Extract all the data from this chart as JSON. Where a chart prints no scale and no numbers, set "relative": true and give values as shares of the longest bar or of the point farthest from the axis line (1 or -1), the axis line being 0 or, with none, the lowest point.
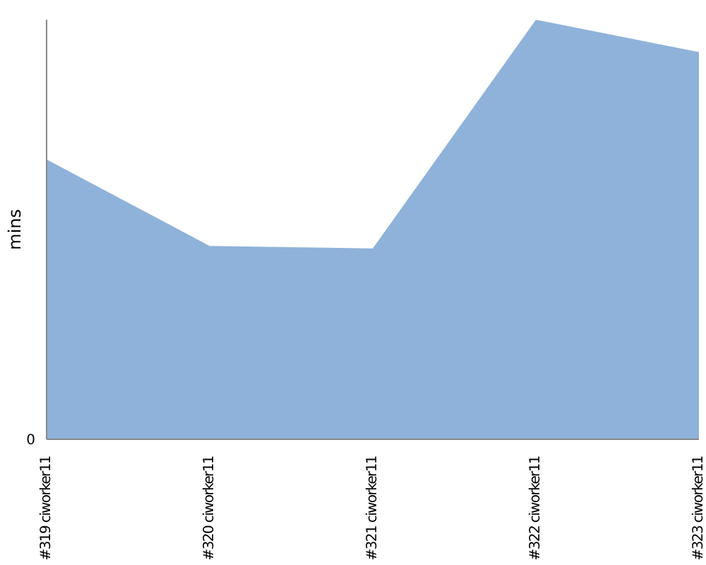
{
  "chart_data": {
    "type": "area",
    "ylabel": "mins",
    "relative": true,
    "annotations": [
      "0"
    ],
    "categories": [
      "#319 ciworker11",
      "#320 ciworker11",
      "#321 ciworker11",
      "#322 ciworker11",
      "#323 ciworker11"
    ],
    "series": [
      {
        "color": "#8fb2da",
        "values": [
          0.667,
          0.461,
          0.455,
          1,
          0.923
        ]
      }
    ],
    "grid": false,
    "legend": false
  }
}
